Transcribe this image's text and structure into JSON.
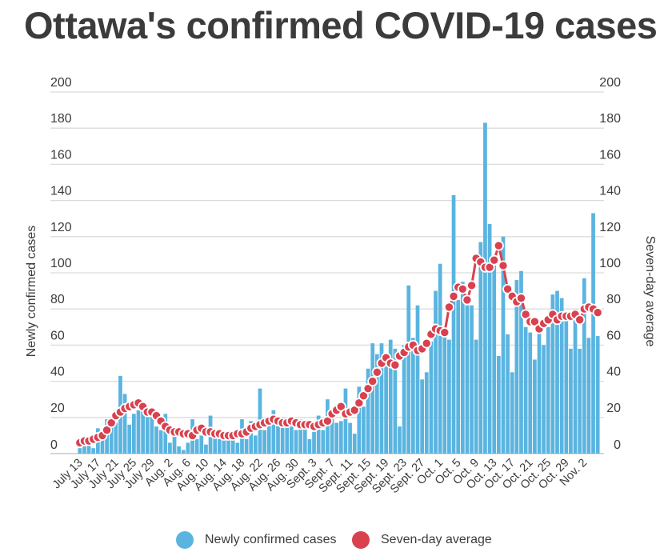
{
  "title": "Ottawa's confirmed COVID-19 cases",
  "colors": {
    "bars": "#5ab4e0",
    "line": "#d9414e",
    "grid": "#dcdcdc",
    "text": "#3c3c3c"
  },
  "legend": [
    {
      "label": "Newly confirmed cases",
      "color": "#5ab4e0"
    },
    {
      "label": "Seven-day average",
      "color": "#d9414e"
    }
  ],
  "chart_data": {
    "type": "bar",
    "title": "Ottawa's confirmed COVID-19 cases",
    "ylabel": "Newly confirmed cases",
    "y2label": "Seven-day average",
    "ylim": [
      0,
      200
    ],
    "y2lim": [
      0,
      200
    ],
    "yticks": [
      0,
      20,
      40,
      60,
      80,
      100,
      120,
      140,
      160,
      180,
      200
    ],
    "grid": true,
    "legend_position": "bottom",
    "x_tick_labels": [
      "July 13",
      "July 17",
      "July 21",
      "July 25",
      "July 29",
      "Aug. 2",
      "Aug. 6",
      "Aug. 10",
      "Aug. 14",
      "Aug. 18",
      "Aug. 22",
      "Aug. 26",
      "Aug. 30",
      "Sept. 3",
      "Sept. 7",
      "Sept. 11",
      "Sept. 15",
      "Sept. 19",
      "Sept. 23",
      "Sept. 27",
      "Oct. 1",
      "Oct. 5",
      "Oct. 9",
      "Oct. 13",
      "Oct. 17",
      "Oct. 21",
      "Oct. 25",
      "Oct. 29",
      "Nov. 2"
    ],
    "start_date": "2020-07-13",
    "series": [
      {
        "name": "Newly confirmed cases",
        "type": "bar",
        "values": [
          3,
          4,
          6,
          3,
          14,
          9,
          19,
          15,
          17,
          43,
          33,
          16,
          22,
          24,
          24,
          23,
          22,
          15,
          13,
          22,
          6,
          13,
          4,
          2,
          6,
          19,
          8,
          10,
          5,
          21,
          9,
          8,
          11,
          10,
          9,
          6,
          19,
          8,
          18,
          10,
          36,
          13,
          16,
          24,
          16,
          20,
          17,
          17,
          13,
          19,
          16,
          8,
          12,
          21,
          13,
          30,
          21,
          17,
          18,
          36,
          17,
          11,
          37,
          26,
          47,
          61,
          55,
          61,
          52,
          63,
          58,
          15,
          60,
          93,
          64,
          82,
          41,
          45,
          62,
          90,
          105,
          70,
          63,
          143,
          85,
          95,
          82,
          82,
          63,
          117,
          183,
          127,
          104,
          54,
          120,
          66,
          45,
          96,
          101,
          70,
          67,
          52,
          72,
          60,
          70,
          88,
          90,
          86,
          75,
          58,
          80,
          58,
          97,
          64,
          133,
          65
        ]
      },
      {
        "name": "Seven-day average",
        "type": "line",
        "values": [
          6,
          7,
          7,
          8,
          9,
          10,
          13,
          17,
          21,
          23,
          25,
          26,
          27,
          28,
          26,
          23,
          23,
          21,
          18,
          15,
          13,
          12,
          12,
          11,
          11,
          10,
          13,
          14,
          12,
          12,
          11,
          11,
          10,
          10,
          10,
          11,
          11,
          12,
          14,
          15,
          16,
          17,
          18,
          19,
          18,
          17,
          17,
          18,
          17,
          16,
          16,
          16,
          15,
          16,
          17,
          18,
          22,
          24,
          26,
          22,
          23,
          24,
          28,
          32,
          36,
          40,
          45,
          50,
          53,
          50,
          49,
          54,
          56,
          59,
          60,
          57,
          58,
          61,
          66,
          69,
          68,
          67,
          81,
          87,
          92,
          91,
          85,
          93,
          108,
          106,
          103,
          103,
          107,
          115,
          104,
          91,
          87,
          84,
          86,
          77,
          73,
          73,
          69,
          72,
          74,
          77,
          74,
          76,
          76,
          76,
          77,
          74,
          80,
          81,
          80,
          78
        ]
      }
    ]
  }
}
